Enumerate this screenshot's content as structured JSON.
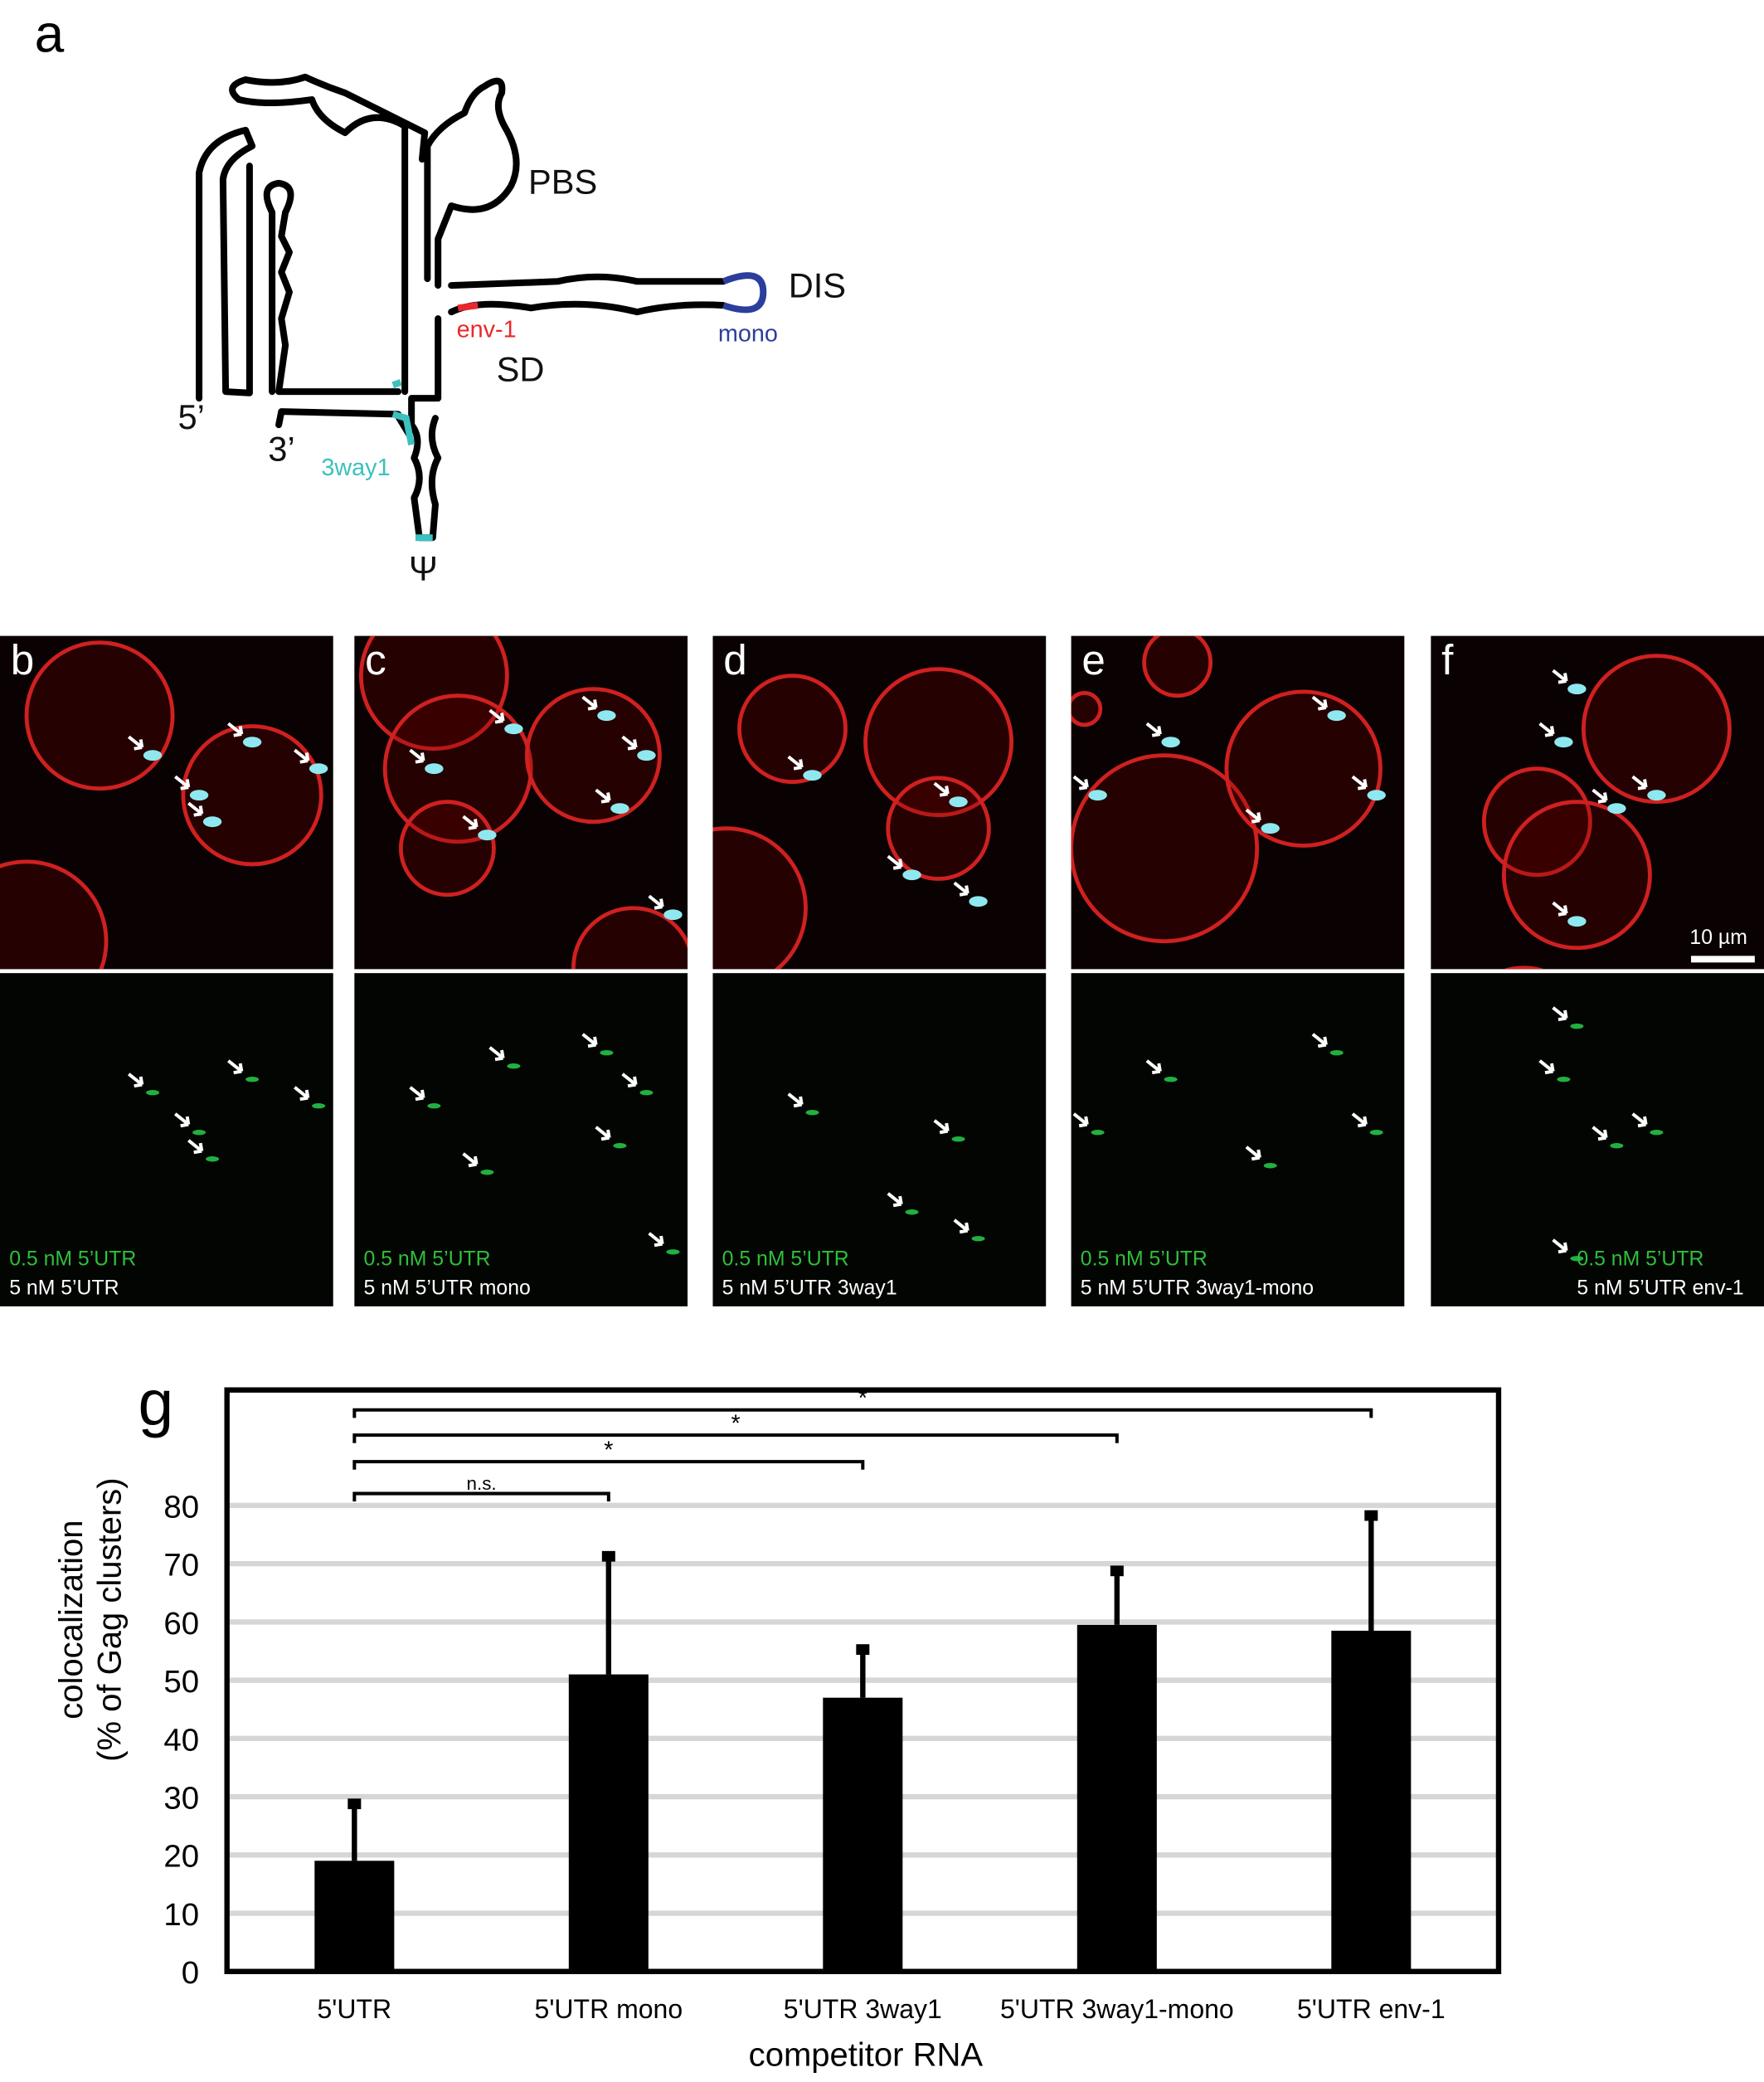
{
  "panel_letters": {
    "a": "a",
    "b": "b",
    "c": "c",
    "d": "d",
    "e": "e",
    "f": "f",
    "g": "g"
  },
  "diagram": {
    "labels": {
      "pbs": "PBS",
      "dis": "DIS",
      "mono": "mono",
      "env1": "env-1",
      "sd": "SD",
      "five": "5’",
      "three": "3’",
      "threeway": "3way1",
      "psi": "Ψ"
    },
    "colors": {
      "structure": "#000000",
      "mono": "#2b3e9c",
      "env1": "#e8282e",
      "threeway": "#3cc0c0"
    }
  },
  "micrographs": [
    {
      "letter": "b",
      "green_caption": "0.5 nM 5’UTR",
      "white_caption": "5 nM 5’UTR"
    },
    {
      "letter": "c",
      "green_caption": "0.5 nM 5’UTR",
      "white_caption": "5 nM 5’UTR mono"
    },
    {
      "letter": "d",
      "green_caption": "0.5 nM 5’UTR",
      "white_caption": "5 nM 5’UTR 3way1"
    },
    {
      "letter": "e",
      "green_caption": "0.5 nM 5’UTR",
      "white_caption": "5 nM 5’UTR 3way1-mono"
    },
    {
      "letter": "f",
      "green_caption": "0.5 nM 5’UTR",
      "white_caption": "5 nM 5’UTR env-1",
      "scale_bar": "10 µm"
    }
  ],
  "colors": {
    "membrane": "#d02020",
    "gag": "#8fe8f0",
    "rna": "#22b040",
    "caption_green": "#2fbf3a"
  },
  "chart_data": {
    "type": "bar",
    "categories": [
      "5'UTR",
      "5'UTR mono",
      "5'UTR 3way1",
      "5'UTR 3way1-mono",
      "5'UTR env-1"
    ],
    "values": [
      19,
      51,
      47,
      59.5,
      58.5
    ],
    "error_upper": [
      29,
      71.5,
      55.5,
      69,
      78.5
    ],
    "xlabel": "competitor RNA",
    "ylabel_line1": "colocalization",
    "ylabel_line2": "(% of Gag clusters)",
    "ylim": [
      0,
      80
    ],
    "yticks": [
      0,
      10,
      20,
      30,
      40,
      50,
      60,
      70,
      80
    ],
    "grid": true,
    "significance": [
      {
        "from": "5'UTR",
        "to": "5'UTR mono",
        "label": "n.s."
      },
      {
        "from": "5'UTR",
        "to": "5'UTR 3way1",
        "label": "*"
      },
      {
        "from": "5'UTR",
        "to": "5'UTR 3way1-mono",
        "label": "*"
      },
      {
        "from": "5'UTR",
        "to": "5'UTR env-1",
        "label": "*"
      }
    ]
  }
}
